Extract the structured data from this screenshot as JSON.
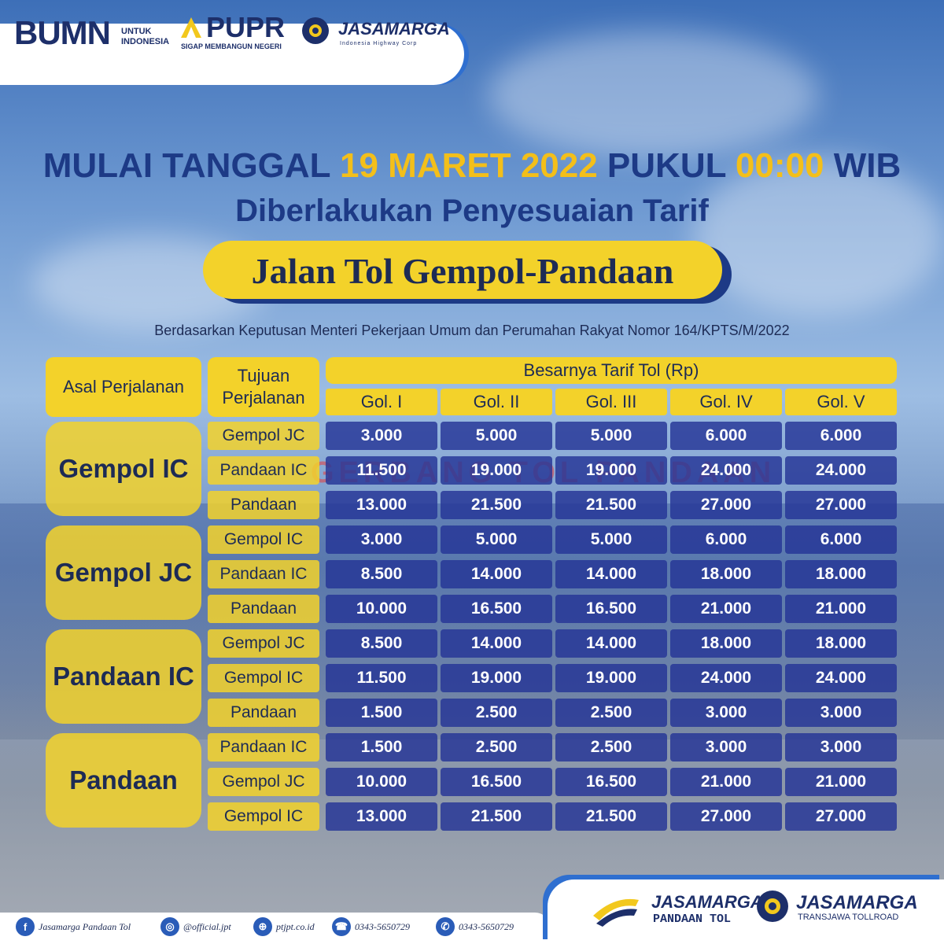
{
  "logos": {
    "bumn": "BUMN",
    "bumn_sub_1": "UNTUK",
    "bumn_sub_2": "INDONESIA",
    "pupr": "PUPR",
    "pupr_sub": "SIGAP MEMBANGUN NEGERI",
    "jasamarga": "JASAMARGA",
    "jasamarga_sub": "Indonesia Highway Corp"
  },
  "headline": {
    "part1": "MULAI TANGGAL ",
    "date": "19 MARET 2022",
    "part2": " PUKUL ",
    "time": "00:00",
    "part3": " WIB",
    "line2": "Diberlakukan Penyesuaian Tarif",
    "toll_road": "Jalan Tol Gempol-Pandaan",
    "basis": "Berdasarkan Keputusan Menteri Pekerjaan Umum dan Perumahan Rakyat Nomor 164/KPTS/M/2022"
  },
  "background_sign": "GERBANG TOL PANDAAN",
  "table": {
    "col_origin": "Asal Perjalanan",
    "col_dest": "Tujuan Perjalanan",
    "col_tariff": "Besarnya Tarif Tol (Rp)",
    "classes": [
      "Gol. I",
      "Gol. II",
      "Gol. III",
      "Gol. IV",
      "Gol. V"
    ],
    "groups": [
      {
        "origin": "Gempol IC",
        "rows": [
          {
            "dest": "Gempol JC",
            "values": [
              "3.000",
              "5.000",
              "5.000",
              "6.000",
              "6.000"
            ]
          },
          {
            "dest": "Pandaan IC",
            "values": [
              "11.500",
              "19.000",
              "19.000",
              "24.000",
              "24.000"
            ]
          },
          {
            "dest": "Pandaan",
            "values": [
              "13.000",
              "21.500",
              "21.500",
              "27.000",
              "27.000"
            ]
          }
        ]
      },
      {
        "origin": "Gempol JC",
        "rows": [
          {
            "dest": "Gempol IC",
            "values": [
              "3.000",
              "5.000",
              "5.000",
              "6.000",
              "6.000"
            ]
          },
          {
            "dest": "Pandaan IC",
            "values": [
              "8.500",
              "14.000",
              "14.000",
              "18.000",
              "18.000"
            ]
          },
          {
            "dest": "Pandaan",
            "values": [
              "10.000",
              "16.500",
              "16.500",
              "21.000",
              "21.000"
            ]
          }
        ]
      },
      {
        "origin": "Pandaan IC",
        "rows": [
          {
            "dest": "Gempol JC",
            "values": [
              "8.500",
              "14.000",
              "14.000",
              "18.000",
              "18.000"
            ]
          },
          {
            "dest": "Gempol IC",
            "values": [
              "11.500",
              "19.000",
              "19.000",
              "24.000",
              "24.000"
            ]
          },
          {
            "dest": "Pandaan",
            "values": [
              "1.500",
              "2.500",
              "2.500",
              "3.000",
              "3.000"
            ]
          }
        ]
      },
      {
        "origin": "Pandaan",
        "rows": [
          {
            "dest": "Pandaan IC",
            "values": [
              "1.500",
              "2.500",
              "2.500",
              "3.000",
              "3.000"
            ]
          },
          {
            "dest": "Gempol JC",
            "values": [
              "10.000",
              "16.500",
              "16.500",
              "21.000",
              "21.000"
            ]
          },
          {
            "dest": "Gempol IC",
            "values": [
              "13.000",
              "21.500",
              "21.500",
              "27.000",
              "27.000"
            ]
          }
        ]
      }
    ]
  },
  "footer": {
    "facebook": "Jasamarga Pandaan Tol",
    "instagram": "@official.jpt",
    "website": "ptjpt.co.id",
    "phone": "0343-5650729",
    "whatsapp": "0343-5650729",
    "brand1": "JASAMARGA",
    "brand1_sub": "PANDAAN TOL",
    "brand2": "JASAMARGA",
    "brand2_sub": "TRANSJAWA TOLLROAD"
  },
  "colors": {
    "navy": "#1d3a86",
    "yellow": "#f3d22a",
    "accent_yellow": "#f3bf1a",
    "cell_blue": "#243496"
  }
}
